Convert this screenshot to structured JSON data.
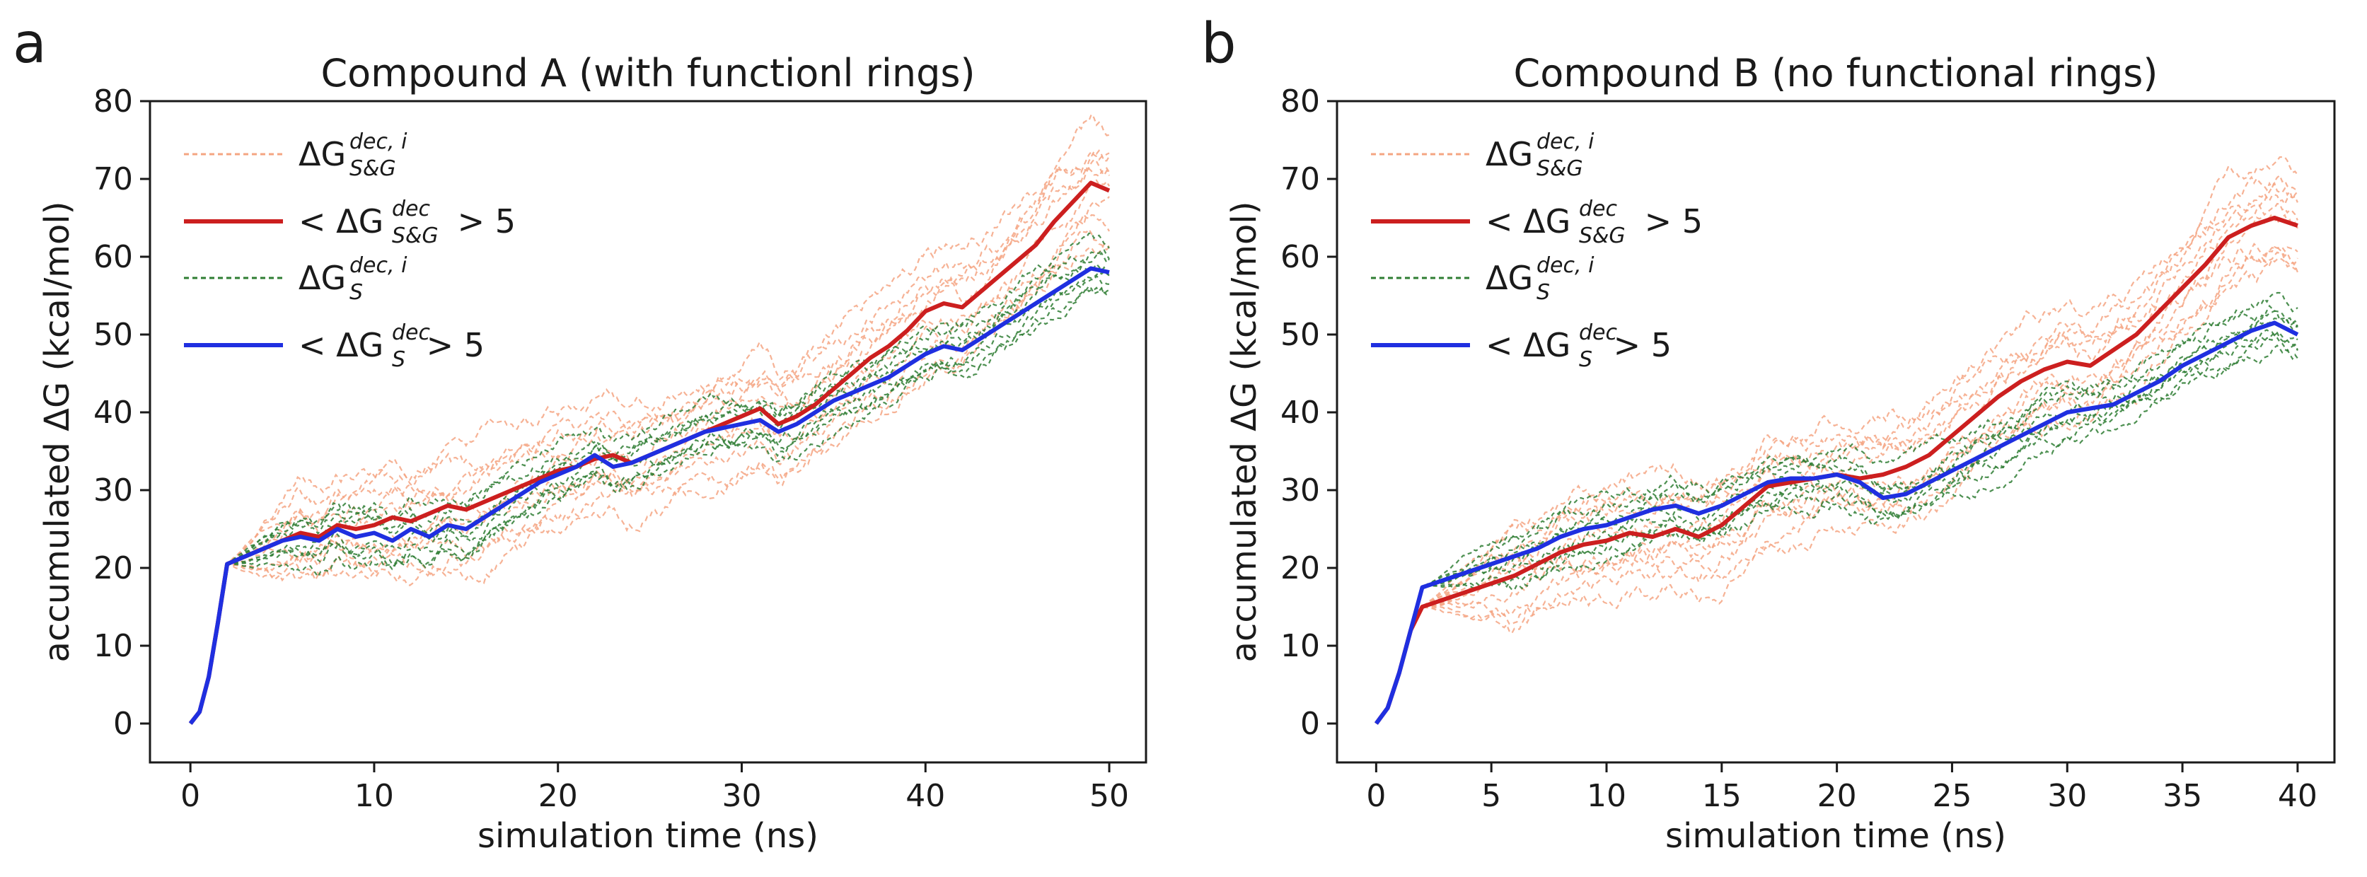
{
  "figure": {
    "colors": {
      "replicate_sg": "#f4a582",
      "mean_sg": "#cc1f1f",
      "replicate_s": "#2e7d32",
      "mean_s": "#1f2fe0",
      "axis": "#1a1a1a"
    },
    "legend": {
      "entries": [
        {
          "pre": "ΔG",
          "sup": "dec, i",
          "sub": "S&G",
          "post": "",
          "series": "replicates_sg",
          "style": "dashed"
        },
        {
          "pre": "< ΔG",
          "sup": "dec",
          "sub": "S&G",
          "post": " > 5",
          "series": "mean_sg",
          "style": "solid"
        },
        {
          "pre": "ΔG",
          "sup": "dec, i",
          "sub": "S",
          "post": "",
          "series": "replicates_s",
          "style": "dashed"
        },
        {
          "pre": "< ΔG",
          "sup": "dec",
          "sub": "S",
          "post": " > 5",
          "series": "mean_s",
          "style": "solid"
        }
      ]
    }
  },
  "chart_data": [
    {
      "panel": "a",
      "type": "line",
      "title": "Compound A (with functionl rings)",
      "xlabel": "simulation time (ns)",
      "ylabel": "accumulated ΔG (kcal/mol)",
      "xlim": [
        -2.2,
        52
      ],
      "ylim": [
        -5,
        80
      ],
      "xticks": [
        0,
        10,
        20,
        30,
        40,
        50
      ],
      "yticks": [
        0,
        10,
        20,
        30,
        40,
        50,
        60,
        70,
        80
      ],
      "legend_position": "top-left",
      "series": [
        {
          "name": "<ΔG_S&G^dec>_5",
          "key": "mean_sg",
          "x": [
            0,
            0.5,
            1,
            1.5,
            2,
            3,
            4,
            5,
            6,
            7,
            8,
            9,
            10,
            11,
            12,
            13,
            14,
            15,
            16,
            17,
            18,
            19,
            20,
            21,
            22,
            23,
            24,
            25,
            26,
            27,
            28,
            29,
            30,
            31,
            32,
            33,
            34,
            35,
            36,
            37,
            38,
            39,
            40,
            41,
            42,
            43,
            44,
            45,
            46,
            47,
            48,
            49,
            50
          ],
          "y": [
            0,
            1.5,
            6,
            13,
            20.5,
            21.5,
            22.5,
            23.5,
            24.5,
            24,
            25.5,
            25,
            25.5,
            26.5,
            26,
            27,
            28,
            27.5,
            28.5,
            29.5,
            30.5,
            31.5,
            32.5,
            33,
            34,
            34.5,
            33.5,
            34.5,
            35.5,
            36.5,
            37.5,
            38.5,
            39.5,
            40.5,
            38.5,
            39.5,
            41,
            43,
            45,
            47,
            48.5,
            50.5,
            53,
            54,
            53.5,
            55.5,
            57.5,
            59.5,
            61.5,
            64.5,
            67,
            69.5,
            68.5
          ]
        },
        {
          "name": "<ΔG_S^dec>_5",
          "key": "mean_s",
          "x": [
            0,
            0.5,
            1,
            1.5,
            2,
            3,
            4,
            5,
            6,
            7,
            8,
            9,
            10,
            11,
            12,
            13,
            14,
            15,
            16,
            17,
            18,
            19,
            20,
            21,
            22,
            23,
            24,
            25,
            26,
            27,
            28,
            29,
            30,
            31,
            32,
            33,
            34,
            35,
            36,
            37,
            38,
            39,
            40,
            41,
            42,
            43,
            44,
            45,
            46,
            47,
            48,
            49,
            50
          ],
          "y": [
            0,
            1.5,
            6,
            13,
            20.5,
            21.5,
            22.5,
            23.5,
            24,
            23.5,
            25,
            24,
            24.5,
            23.5,
            25,
            24,
            25.5,
            25,
            26.5,
            28,
            29.5,
            31,
            32,
            33,
            34.5,
            33,
            33.5,
            34.5,
            35.5,
            36.5,
            37.5,
            38,
            38.5,
            39,
            37.5,
            38.5,
            40,
            41.5,
            42.5,
            43.5,
            44.5,
            46,
            47.5,
            48.5,
            48,
            49.5,
            51,
            52.5,
            54,
            55.5,
            57,
            58.5,
            58
          ]
        }
      ]
    },
    {
      "panel": "b",
      "type": "line",
      "title": "Compound B (no functional rings)",
      "xlabel": "simulation time (ns)",
      "ylabel": "accumulated ΔG (kcal/mol)",
      "xlim": [
        -1.7,
        41.6
      ],
      "ylim": [
        -5,
        80
      ],
      "xticks": [
        0,
        5,
        10,
        15,
        20,
        25,
        30,
        35,
        40
      ],
      "yticks": [
        0,
        10,
        20,
        30,
        40,
        50,
        60,
        70,
        80
      ],
      "legend_position": "top-left",
      "series": [
        {
          "name": "<ΔG_S&G^dec>_5",
          "key": "mean_sg",
          "x": [
            0,
            0.5,
            1,
            1.5,
            2,
            3,
            4,
            5,
            6,
            7,
            8,
            9,
            10,
            11,
            12,
            13,
            14,
            15,
            16,
            17,
            18,
            19,
            20,
            21,
            22,
            23,
            24,
            25,
            26,
            27,
            28,
            29,
            30,
            31,
            32,
            33,
            34,
            35,
            36,
            37,
            38,
            39,
            40
          ],
          "y": [
            0,
            2,
            6.5,
            12,
            15,
            16,
            17,
            18,
            19,
            20.5,
            22,
            23,
            23.5,
            24.5,
            24,
            25,
            24,
            25.5,
            28,
            30.5,
            31,
            31.5,
            32,
            31.5,
            32,
            33,
            34.5,
            37,
            39.5,
            42,
            44,
            45.5,
            46.5,
            46,
            48,
            50,
            53,
            56,
            59,
            62.5,
            64,
            65,
            64
          ]
        },
        {
          "name": "<ΔG_S^dec>_5",
          "key": "mean_s",
          "x": [
            0,
            0.5,
            1,
            1.5,
            2,
            3,
            4,
            5,
            6,
            7,
            8,
            9,
            10,
            11,
            12,
            13,
            14,
            15,
            16,
            17,
            18,
            19,
            20,
            21,
            22,
            23,
            24,
            25,
            26,
            27,
            28,
            29,
            30,
            31,
            32,
            33,
            34,
            35,
            36,
            37,
            38,
            39,
            40
          ],
          "y": [
            0,
            2,
            6.5,
            12,
            17.5,
            18.5,
            19.5,
            20.5,
            21.5,
            22.5,
            24,
            25,
            25.5,
            26.5,
            27.5,
            28,
            27,
            28,
            29.5,
            31,
            31.5,
            31.5,
            32,
            31,
            29,
            29.5,
            31,
            32.5,
            34,
            35.5,
            37,
            38.5,
            40,
            40.5,
            41,
            42.5,
            44,
            46,
            47.5,
            49,
            50.5,
            51.5,
            50
          ]
        }
      ]
    }
  ]
}
